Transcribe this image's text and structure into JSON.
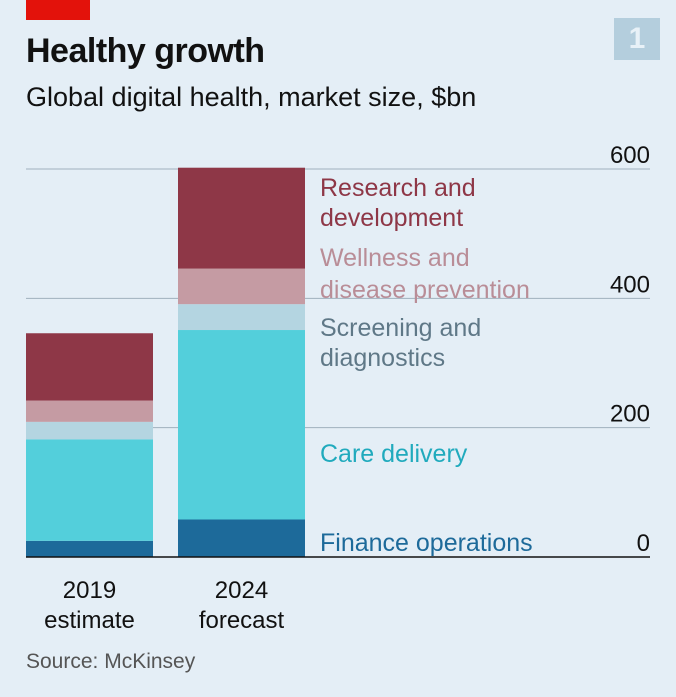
{
  "header": {
    "title": "Healthy growth",
    "subtitle": "Global digital health, market size, $bn",
    "badge": "1"
  },
  "source": "Source: McKinsey",
  "colors": {
    "background": "#e4eef6",
    "accent_red": "#e3120b",
    "gridline": "#9fb0bd",
    "axis": "#111111"
  },
  "chart_data": {
    "type": "bar",
    "stacked": true,
    "categories": [
      [
        "2019",
        "estimate"
      ],
      [
        "2024",
        "forecast"
      ]
    ],
    "ylim": [
      0,
      600
    ],
    "yticks": [
      0,
      200,
      400,
      600
    ],
    "ytick_position": "right",
    "grid": true,
    "legend": "direct labels beside 2024 bar",
    "series": [
      {
        "name": "Finance operations",
        "label_lines": [
          "Finance operations"
        ],
        "color": "#1d6a9a",
        "label_color": "#1d6a9a",
        "values": [
          25,
          58
        ]
      },
      {
        "name": "Care delivery",
        "label_lines": [
          "Care delivery"
        ],
        "color": "#53cfdb",
        "label_color": "#20aabd",
        "values": [
          157,
          293
        ]
      },
      {
        "name": "Screening and diagnostics",
        "label_lines": [
          "Screening and",
          "diagnostics"
        ],
        "color": "#b4d5e1",
        "label_color": "#5f7887",
        "values": [
          27,
          40
        ]
      },
      {
        "name": "Wellness and disease prevention",
        "label_lines": [
          "Wellness and",
          "disease prevention"
        ],
        "color": "#c59ba3",
        "label_color": "#b98d97",
        "values": [
          33,
          55
        ]
      },
      {
        "name": "Research and development",
        "label_lines": [
          "Research and",
          "development"
        ],
        "color": "#8e3747",
        "label_color": "#8e3747",
        "values": [
          104,
          156
        ]
      }
    ]
  }
}
